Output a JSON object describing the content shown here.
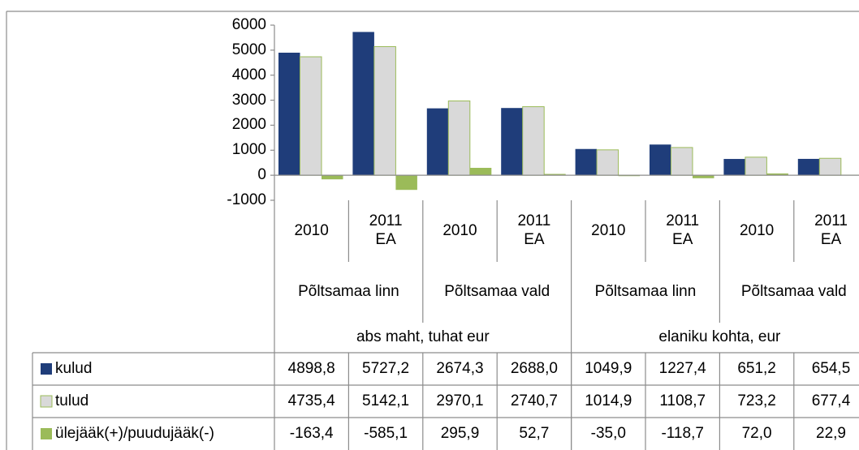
{
  "chart_data": {
    "type": "bar",
    "categories": [
      "2010",
      "2011 EA",
      "2010",
      "2011 EA",
      "2010",
      "2011 EA",
      "2010",
      "2011 EA"
    ],
    "category_groups": [
      "Põltsamaa linn",
      "Põltsamaa vald",
      "Põltsamaa linn",
      "Põltsamaa vald"
    ],
    "top_groups": [
      "abs maht, tuhat eur",
      "elaniku kohta, eur"
    ],
    "series": [
      {
        "name": "kulud",
        "color": "#1f3d7a",
        "values": [
          4898.8,
          5727.2,
          2674.3,
          2688.0,
          1049.9,
          1227.4,
          651.2,
          654.5
        ],
        "value_labels": [
          "4898,8",
          "5727,2",
          "2674,3",
          "2688,0",
          "1049,9",
          "1227,4",
          "651,2",
          "654,5"
        ]
      },
      {
        "name": "tulud",
        "color": "#d9d9d9",
        "values": [
          4735.4,
          5142.1,
          2970.1,
          2740.7,
          1014.9,
          1108.7,
          723.2,
          677.4
        ],
        "value_labels": [
          "4735,4",
          "5142,1",
          "2970,1",
          "2740,7",
          "1014,9",
          "1108,7",
          "723,2",
          "677,4"
        ]
      },
      {
        "name": "ülejääk(+)/puudujääk(-)",
        "color": "#9bbb59",
        "values": [
          -163.4,
          -585.1,
          295.9,
          52.7,
          -35.0,
          -118.7,
          72.0,
          22.9
        ],
        "value_labels": [
          "-163,4",
          "-585,1",
          "295,9",
          "52,7",
          "-35,0",
          "-118,7",
          "72,0",
          "22,9"
        ]
      }
    ],
    "ylim": [
      -1000,
      6000
    ],
    "yticks": [
      -1000,
      0,
      1000,
      2000,
      3000,
      4000,
      5000,
      6000
    ],
    "grid": false
  }
}
